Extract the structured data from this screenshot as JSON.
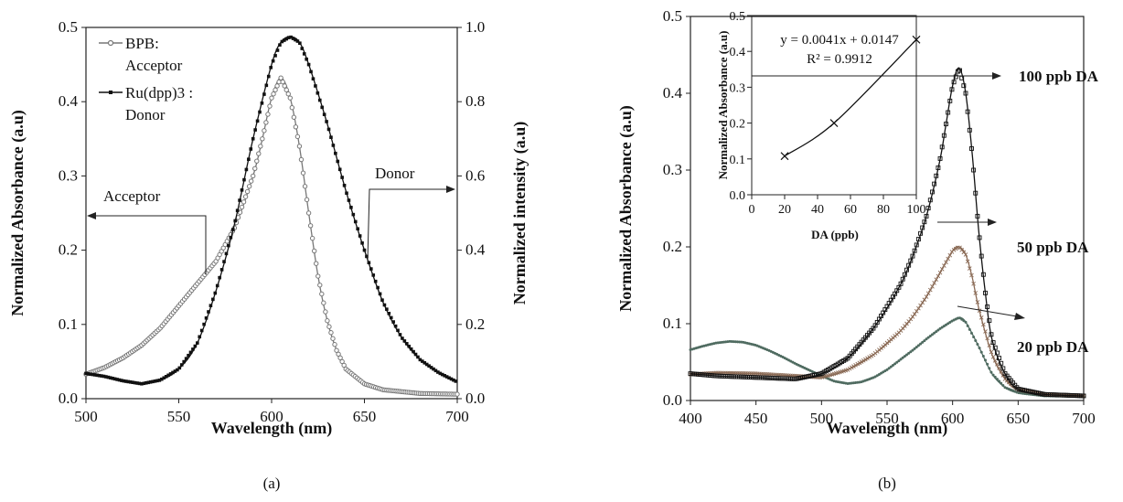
{
  "chart_data": [
    {
      "id": "a",
      "type": "line",
      "caption": "(a)",
      "xlabel": "Wavelength  (nm)",
      "ylabel": "Normalized Absorbance  (a.u)",
      "y2label": "Normalized intensity  (a.u)",
      "xlim": [
        500,
        700
      ],
      "ylim": [
        0,
        0.5
      ],
      "y2lim": [
        0,
        1.0
      ],
      "x_ticks": [
        "500",
        "550",
        "600",
        "650",
        "700"
      ],
      "y_ticks": [
        "0.0",
        "0.1",
        "0.2",
        "0.3",
        "0.4",
        "0.5"
      ],
      "y2_ticks": [
        "0.0",
        "0.2",
        "0.4",
        "0.6",
        "0.8",
        "1.0"
      ],
      "legend": [
        {
          "label_lines": [
            "BPB:",
            "Acceptor"
          ],
          "marker": "open-circle"
        },
        {
          "label_lines": [
            "Ru(dpp)3 :",
            "Donor"
          ],
          "marker": "filled-square"
        }
      ],
      "annotations": [
        {
          "text": "Acceptor",
          "arrow": "left",
          "axis": "left"
        },
        {
          "text": "Donor",
          "arrow": "right",
          "axis": "right"
        }
      ],
      "series": [
        {
          "name": "BPB: Acceptor",
          "axis": "left",
          "color": "#777777",
          "marker": "open-circle",
          "points": [
            [
              500,
              0.033
            ],
            [
              510,
              0.042
            ],
            [
              520,
              0.055
            ],
            [
              530,
              0.072
            ],
            [
              540,
              0.095
            ],
            [
              550,
              0.125
            ],
            [
              560,
              0.155
            ],
            [
              570,
              0.185
            ],
            [
              580,
              0.23
            ],
            [
              590,
              0.3
            ],
            [
              595,
              0.35
            ],
            [
              600,
              0.405
            ],
            [
              605,
              0.432
            ],
            [
              610,
              0.405
            ],
            [
              615,
              0.34
            ],
            [
              620,
              0.25
            ],
            [
              625,
              0.165
            ],
            [
              630,
              0.105
            ],
            [
              635,
              0.065
            ],
            [
              640,
              0.04
            ],
            [
              650,
              0.02
            ],
            [
              660,
              0.012
            ],
            [
              680,
              0.007
            ],
            [
              700,
              0.006
            ]
          ]
        },
        {
          "name": "Ru(dpp)3 : Donor",
          "axis": "right",
          "color": "#111111",
          "marker": "filled-square",
          "points": [
            [
              500,
              0.068
            ],
            [
              510,
              0.06
            ],
            [
              520,
              0.048
            ],
            [
              530,
              0.04
            ],
            [
              540,
              0.05
            ],
            [
              550,
              0.08
            ],
            [
              560,
              0.15
            ],
            [
              570,
              0.29
            ],
            [
              580,
              0.47
            ],
            [
              590,
              0.7
            ],
            [
              600,
              0.9
            ],
            [
              605,
              0.96
            ],
            [
              610,
              0.975
            ],
            [
              615,
              0.96
            ],
            [
              620,
              0.9
            ],
            [
              630,
              0.74
            ],
            [
              640,
              0.56
            ],
            [
              650,
              0.4
            ],
            [
              660,
              0.26
            ],
            [
              670,
              0.165
            ],
            [
              680,
              0.105
            ],
            [
              690,
              0.07
            ],
            [
              700,
              0.045
            ]
          ]
        }
      ]
    },
    {
      "id": "b",
      "type": "line",
      "caption": "(b)",
      "xlabel": "Wavelength  (nm)",
      "ylabel": "Normalized Absorbance  (a.u)",
      "xlim": [
        400,
        700
      ],
      "ylim": [
        0,
        0.5
      ],
      "x_ticks": [
        "400",
        "450",
        "500",
        "550",
        "600",
        "650",
        "700"
      ],
      "y_ticks": [
        "0.0",
        "0.1",
        "0.2",
        "0.3",
        "0.4",
        "0.5"
      ],
      "labels": [
        "100 ppb DA",
        "50 ppb DA",
        "20 ppb DA"
      ],
      "series": [
        {
          "name": "100 ppb DA",
          "color": "#111111",
          "marker": "open-square",
          "points": [
            [
              400,
              0.035
            ],
            [
              420,
              0.032
            ],
            [
              450,
              0.03
            ],
            [
              480,
              0.028
            ],
            [
              500,
              0.035
            ],
            [
              520,
              0.055
            ],
            [
              540,
              0.095
            ],
            [
              560,
              0.15
            ],
            [
              570,
              0.19
            ],
            [
              580,
              0.24
            ],
            [
              590,
              0.31
            ],
            [
              595,
              0.36
            ],
            [
              600,
              0.41
            ],
            [
              605,
              0.433
            ],
            [
              610,
              0.4
            ],
            [
              615,
              0.32
            ],
            [
              620,
              0.22
            ],
            [
              625,
              0.14
            ],
            [
              630,
              0.08
            ],
            [
              640,
              0.035
            ],
            [
              650,
              0.015
            ],
            [
              670,
              0.008
            ],
            [
              700,
              0.006
            ]
          ]
        },
        {
          "name": "50 ppb DA",
          "color": "#8a6a55",
          "marker": "cross",
          "points": [
            [
              400,
              0.034
            ],
            [
              420,
              0.036
            ],
            [
              450,
              0.035
            ],
            [
              480,
              0.032
            ],
            [
              500,
              0.03
            ],
            [
              520,
              0.04
            ],
            [
              540,
              0.06
            ],
            [
              560,
              0.09
            ],
            [
              570,
              0.11
            ],
            [
              580,
              0.135
            ],
            [
              590,
              0.165
            ],
            [
              600,
              0.195
            ],
            [
              605,
              0.2
            ],
            [
              610,
              0.19
            ],
            [
              615,
              0.16
            ],
            [
              620,
              0.12
            ],
            [
              630,
              0.06
            ],
            [
              640,
              0.028
            ],
            [
              650,
              0.014
            ],
            [
              670,
              0.008
            ],
            [
              700,
              0.006
            ]
          ]
        },
        {
          "name": "20 ppb DA",
          "color": "#4f6b60",
          "marker": "dot",
          "points": [
            [
              400,
              0.066
            ],
            [
              410,
              0.071
            ],
            [
              420,
              0.075
            ],
            [
              430,
              0.077
            ],
            [
              440,
              0.076
            ],
            [
              450,
              0.072
            ],
            [
              460,
              0.065
            ],
            [
              470,
              0.057
            ],
            [
              480,
              0.048
            ],
            [
              490,
              0.04
            ],
            [
              500,
              0.032
            ],
            [
              510,
              0.025
            ],
            [
              520,
              0.022
            ],
            [
              530,
              0.024
            ],
            [
              540,
              0.03
            ],
            [
              550,
              0.04
            ],
            [
              560,
              0.053
            ],
            [
              570,
              0.066
            ],
            [
              580,
              0.08
            ],
            [
              590,
              0.093
            ],
            [
              600,
              0.104
            ],
            [
              605,
              0.108
            ],
            [
              610,
              0.102
            ],
            [
              620,
              0.07
            ],
            [
              630,
              0.035
            ],
            [
              640,
              0.017
            ],
            [
              650,
              0.01
            ],
            [
              670,
              0.006
            ],
            [
              700,
              0.005
            ]
          ]
        }
      ],
      "inset": {
        "type": "scatter",
        "xlabel": "DA (ppb)",
        "ylabel": "Normalized Absorbance (a.u)",
        "xlim": [
          0,
          100
        ],
        "ylim": [
          0,
          0.5
        ],
        "x_ticks": [
          "0",
          "20",
          "40",
          "60",
          "80",
          "100"
        ],
        "y_ticks": [
          "0.0",
          "0.1",
          "0.2",
          "0.3",
          "0.4",
          "0.5"
        ],
        "equation": "y = 0.0041x + 0.0147",
        "r2": "R² = 0.9912",
        "points": [
          [
            20,
            0.108
          ],
          [
            50,
            0.2
          ],
          [
            100,
            0.433
          ]
        ]
      }
    }
  ]
}
